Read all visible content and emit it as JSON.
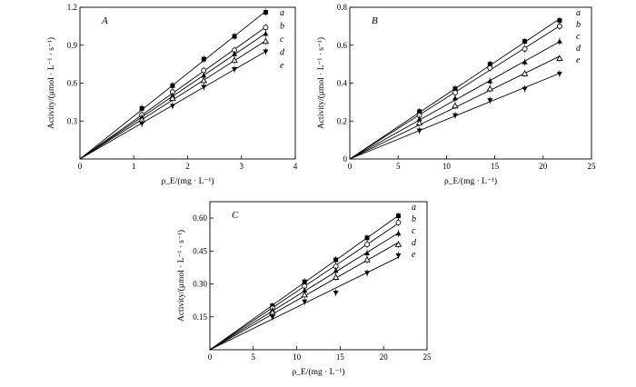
{
  "chart_data": [
    {
      "type": "line",
      "panel_label": "A",
      "xlabel": "ρ_E/(mg · L⁻¹)",
      "ylabel": "Activity/(μmol · L⁻¹ · s⁻¹)",
      "xlim": [
        0,
        4
      ],
      "ylim": [
        0,
        1.2
      ],
      "xticks": [
        0,
        1,
        2,
        3,
        4
      ],
      "yticks": [
        0.3,
        0.6,
        0.9,
        1.2
      ],
      "xtick_labels": [
        "0",
        "1",
        "2",
        "3",
        "4"
      ],
      "ytick_labels": [
        "0.3",
        "0.6",
        "0.9",
        "1.2"
      ],
      "grid": false,
      "x": [
        1.15,
        1.72,
        2.3,
        2.87,
        3.45
      ],
      "series": [
        {
          "name": "a",
          "marker": "square",
          "values": [
            0.4,
            0.58,
            0.79,
            0.97,
            1.16
          ]
        },
        {
          "name": "b",
          "marker": "circle-open",
          "values": [
            0.35,
            0.53,
            0.7,
            0.86,
            1.04
          ]
        },
        {
          "name": "c",
          "marker": "triangle",
          "values": [
            0.33,
            0.5,
            0.66,
            0.83,
            0.99
          ]
        },
        {
          "name": "d",
          "marker": "triangle-open",
          "values": [
            0.31,
            0.48,
            0.62,
            0.78,
            0.93
          ]
        },
        {
          "name": "e",
          "marker": "triangle-down",
          "values": [
            0.28,
            0.42,
            0.57,
            0.71,
            0.85
          ]
        }
      ]
    },
    {
      "type": "line",
      "panel_label": "B",
      "xlabel": "ρ_E/(mg · L⁻¹)",
      "ylabel": "Activity/(μmol · L⁻¹ · s⁻¹)",
      "xlim": [
        0,
        25
      ],
      "ylim": [
        0,
        0.8
      ],
      "xticks": [
        0,
        5,
        10,
        15,
        20,
        25
      ],
      "yticks": [
        0,
        0.2,
        0.4,
        0.6,
        0.8
      ],
      "xtick_labels": [
        "0",
        "5",
        "10",
        "15",
        "20",
        "25"
      ],
      "ytick_labels": [
        "0",
        "0.2",
        "0.4",
        "0.6",
        "0.8"
      ],
      "grid": false,
      "x": [
        7.2,
        10.9,
        14.5,
        18.1,
        21.7
      ],
      "series": [
        {
          "name": "a",
          "marker": "square",
          "values": [
            0.25,
            0.37,
            0.5,
            0.62,
            0.73
          ]
        },
        {
          "name": "b",
          "marker": "circle-open",
          "values": [
            0.23,
            0.35,
            0.48,
            0.58,
            0.7
          ]
        },
        {
          "name": "c",
          "marker": "triangle",
          "values": [
            0.21,
            0.32,
            0.41,
            0.51,
            0.62
          ]
        },
        {
          "name": "d",
          "marker": "triangle-open",
          "values": [
            0.19,
            0.28,
            0.37,
            0.45,
            0.53
          ]
        },
        {
          "name": "e",
          "marker": "triangle-down",
          "values": [
            0.15,
            0.23,
            0.31,
            0.37,
            0.45
          ]
        }
      ]
    },
    {
      "type": "line",
      "panel_label": "C",
      "xlabel": "ρ_E/(mg · L⁻¹)",
      "ylabel": "Activity/(μmol · L⁻¹ · s⁻¹)",
      "xlim": [
        0,
        25
      ],
      "ylim": [
        0,
        0.675
      ],
      "xticks": [
        0,
        5,
        10,
        15,
        20,
        25
      ],
      "yticks": [
        0.15,
        0.3,
        0.45,
        0.6
      ],
      "xtick_labels": [
        "0",
        "5",
        "10",
        "15",
        "20",
        "25"
      ],
      "ytick_labels": [
        "0.15",
        "0.30",
        "0.45",
        "0.60"
      ],
      "grid": false,
      "x": [
        7.2,
        10.9,
        14.5,
        18.1,
        21.7
      ],
      "series": [
        {
          "name": "a",
          "marker": "square",
          "values": [
            0.2,
            0.31,
            0.41,
            0.51,
            0.61
          ]
        },
        {
          "name": "b",
          "marker": "circle-open",
          "values": [
            0.19,
            0.29,
            0.38,
            0.48,
            0.58
          ]
        },
        {
          "name": "c",
          "marker": "triangle",
          "values": [
            0.18,
            0.27,
            0.36,
            0.44,
            0.53
          ]
        },
        {
          "name": "d",
          "marker": "triangle-open",
          "values": [
            0.17,
            0.25,
            0.33,
            0.41,
            0.48
          ]
        },
        {
          "name": "e",
          "marker": "triangle-down",
          "values": [
            0.15,
            0.22,
            0.26,
            0.35,
            0.43
          ]
        }
      ]
    }
  ]
}
